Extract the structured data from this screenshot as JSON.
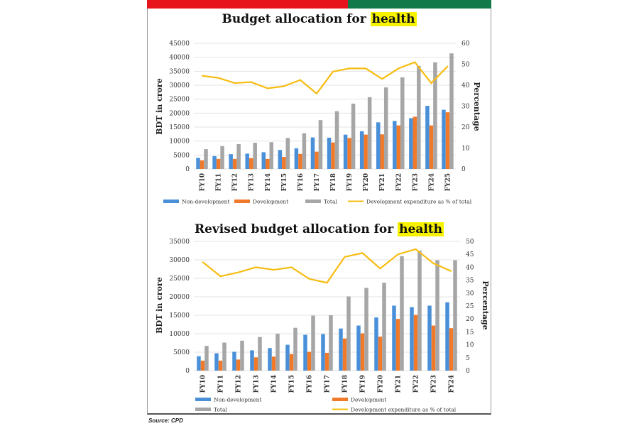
{
  "colors": {
    "non_development": "#4a90d9",
    "development": "#f07a2a",
    "total": "#a6a6a6",
    "line": "#f7bc10",
    "highlight": "#f6f200"
  },
  "source": "Source: CPD",
  "chart_data": [
    {
      "type": "bar",
      "title_prefix": "Budget allocation for ",
      "title_highlight": "health",
      "ylabel": "BDT in crore",
      "y2label": "Percentage",
      "ylim": [
        0,
        45000
      ],
      "yticks": [
        "0",
        "5000",
        "10000",
        "15000",
        "20000",
        "25000",
        "30000",
        "35000",
        "40000",
        "45000"
      ],
      "y2lim": [
        0,
        60
      ],
      "y2ticks": [
        "0",
        "10",
        "20",
        "30",
        "40",
        "50",
        "60"
      ],
      "grid": true,
      "legend_position": "bottom",
      "categories": [
        "FY10",
        "FY11",
        "FY12",
        "FY13",
        "FY14",
        "FY15",
        "FY16",
        "FY17",
        "FY18",
        "FY19",
        "FY20",
        "FY21",
        "FY22",
        "FY23",
        "FY24",
        "FY25"
      ],
      "series": [
        {
          "name": "Non-development",
          "type": "bar",
          "axis": "left",
          "values": [
            4000,
            4600,
            5300,
            5500,
            6000,
            6800,
            7400,
            11300,
            11200,
            12300,
            13500,
            16700,
            17200,
            18200,
            22600,
            21200
          ]
        },
        {
          "name": "Development",
          "type": "bar",
          "axis": "left",
          "values": [
            3100,
            3600,
            3600,
            3900,
            3600,
            4300,
            5400,
            6200,
            9500,
            11100,
            12300,
            12400,
            15600,
            18700,
            15600,
            20300
          ]
        },
        {
          "name": "Total",
          "type": "bar",
          "axis": "left",
          "values": [
            7100,
            8200,
            8900,
            9400,
            9600,
            11100,
            12800,
            17500,
            20700,
            23400,
            25700,
            29200,
            32800,
            36900,
            38200,
            41400
          ]
        },
        {
          "name": "Development expenditure as % of total",
          "type": "line",
          "axis": "right",
          "values": [
            44.5,
            43.5,
            41,
            41.5,
            38.5,
            39.5,
            42.5,
            36,
            46.5,
            48,
            48,
            43,
            48,
            51,
            41,
            49
          ]
        }
      ]
    },
    {
      "type": "bar",
      "title_prefix": "Revised budget allocation for ",
      "title_highlight": "health",
      "ylabel": "BDT in crore",
      "y2label": "Percentage",
      "ylim": [
        0,
        35000
      ],
      "yticks": [
        "0",
        "5000",
        "10000",
        "15000",
        "20000",
        "25000",
        "30000",
        "35000"
      ],
      "y2lim": [
        0,
        50
      ],
      "y2ticks": [
        "0",
        "5",
        "10",
        "15",
        "20",
        "25",
        "30",
        "35",
        "40",
        "45",
        "50"
      ],
      "grid": true,
      "legend_position": "bottom",
      "categories": [
        "FY10",
        "FY11",
        "FY12",
        "FY13",
        "FY14",
        "FY15",
        "FY16",
        "FY17",
        "FY18",
        "FY19",
        "FY20",
        "FY21",
        "FY22",
        "FY23",
        "FY24"
      ],
      "series": [
        {
          "name": "Non-development",
          "type": "bar",
          "axis": "left",
          "values": [
            3900,
            4700,
            5100,
            5500,
            6100,
            7000,
            9700,
            9900,
            11400,
            12200,
            14400,
            17600,
            17200,
            17600,
            18500
          ]
        },
        {
          "name": "Development",
          "type": "bar",
          "axis": "left",
          "values": [
            2700,
            2700,
            3000,
            3600,
            3800,
            4500,
            5100,
            4800,
            8700,
            10100,
            9200,
            14000,
            15100,
            12200,
            11500
          ]
        },
        {
          "name": "Total",
          "type": "bar",
          "axis": "left",
          "values": [
            6700,
            7600,
            8100,
            9100,
            10000,
            11600,
            14900,
            15000,
            20100,
            22400,
            23800,
            31000,
            32500,
            29900,
            29900
          ]
        },
        {
          "name": "Development expenditure as % of total",
          "type": "line",
          "axis": "right",
          "values": [
            42,
            36.5,
            38,
            40,
            39,
            40,
            35.5,
            34,
            44,
            45.5,
            39.5,
            45,
            47,
            41.5,
            38.5
          ]
        }
      ]
    }
  ]
}
